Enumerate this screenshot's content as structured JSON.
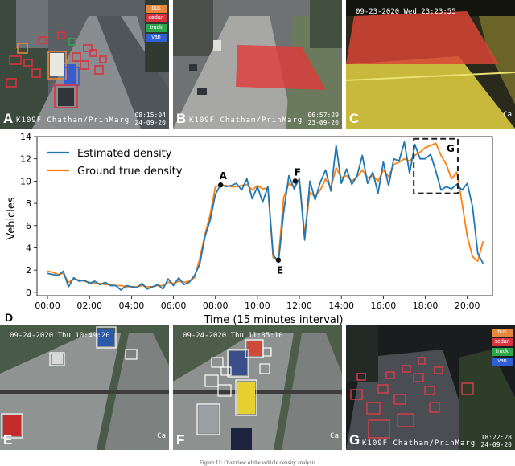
{
  "panels": {
    "A": {
      "label": "A",
      "location": "K109F Chatham/PrinMarg",
      "time_line1": "08:15:04",
      "time_line2": "24-09-20",
      "legend": [
        {
          "label": "bus",
          "color": "#e8863a"
        },
        {
          "label": "sedan",
          "color": "#d9323f"
        },
        {
          "label": "truck",
          "color": "#2aa84a"
        },
        {
          "label": "van",
          "color": "#2f5fd6"
        }
      ]
    },
    "B": {
      "label": "B",
      "location": "K109F Chatham/PrinMarg",
      "time_line1": "06:57:29",
      "time_line2": "23-09-20"
    },
    "C": {
      "label": "C",
      "timestamp": "09-23-2020 Wed 23:23:55",
      "corner": "Ca"
    },
    "D": {
      "label": "D"
    },
    "E": {
      "label": "E",
      "timestamp": "09-24-2020 Thu 10:49:20",
      "corner": "Ca"
    },
    "F": {
      "label": "F",
      "timestamp": "09-24-2020 Thu 11:35:10",
      "corner": "Ca"
    },
    "G": {
      "label": "G",
      "location": "K109F Chatham/PrinMarg",
      "time_line1": "18:22:28",
      "time_line2": "24-09-20",
      "legend": [
        {
          "label": "bus",
          "color": "#e8863a"
        },
        {
          "label": "sedan",
          "color": "#d9323f"
        },
        {
          "label": "truck",
          "color": "#2aa84a"
        },
        {
          "label": "van",
          "color": "#2f5fd6"
        }
      ]
    }
  },
  "caption": "Figure 11: Overview of the vehicle density analysis",
  "chart_data": {
    "type": "line",
    "xlabel": "Time (15 minutes interval)",
    "ylabel": "Vehicles",
    "xlim": [
      -0.5,
      21.2
    ],
    "ylim": [
      -0.3,
      14
    ],
    "x_ticks": [
      0,
      2,
      4,
      6,
      8,
      10,
      12,
      14,
      16,
      18,
      20
    ],
    "x_tick_labels": [
      "00:00",
      "02:00",
      "04:00",
      "06:00",
      "08:00",
      "10:00",
      "12:00",
      "14:00",
      "16:00",
      "18:00",
      "20:00"
    ],
    "y_ticks": [
      0,
      2,
      4,
      6,
      8,
      10,
      12,
      14
    ],
    "y_tick_labels": [
      "0",
      "2",
      "4",
      "6",
      "8",
      "10",
      "12",
      "14"
    ],
    "grid": false,
    "legend_position": "top-left",
    "x": [
      0,
      0.25,
      0.5,
      0.75,
      1,
      1.25,
      1.5,
      1.75,
      2,
      2.25,
      2.5,
      2.75,
      3,
      3.25,
      3.5,
      3.75,
      4,
      4.25,
      4.5,
      4.75,
      5,
      5.25,
      5.5,
      5.75,
      6,
      6.25,
      6.5,
      6.75,
      7,
      7.25,
      7.5,
      7.75,
      8,
      8.25,
      8.5,
      8.75,
      9,
      9.25,
      9.5,
      9.75,
      10,
      10.25,
      10.5,
      10.75,
      11,
      11.25,
      11.5,
      11.75,
      12,
      12.25,
      12.5,
      12.75,
      13,
      13.25,
      13.5,
      13.75,
      14,
      14.25,
      14.5,
      14.75,
      15,
      15.25,
      15.5,
      15.75,
      16,
      16.25,
      16.5,
      16.75,
      17,
      17.25,
      17.5,
      17.75,
      18,
      18.25,
      18.5,
      18.75,
      19,
      19.25,
      19.5,
      19.75,
      20,
      20.25,
      20.5,
      20.75
    ],
    "series": [
      {
        "name": "Estimated density",
        "color": "#1f77b4",
        "values": [
          1.7,
          1.6,
          1.5,
          1.9,
          0.5,
          1.3,
          1.0,
          1.1,
          0.8,
          1.0,
          0.7,
          0.9,
          0.6,
          0.6,
          0.2,
          0.6,
          0.5,
          0.4,
          0.8,
          0.3,
          0.5,
          0.7,
          0.3,
          1.2,
          0.6,
          1.3,
          0.7,
          0.9,
          1.5,
          2.5,
          5.0,
          6.5,
          8.8,
          9.7,
          9.5,
          9.6,
          9.8,
          9.2,
          10.2,
          8.4,
          9.5,
          8.1,
          9.5,
          3.4,
          2.7,
          7.2,
          10.5,
          9.3,
          10.2,
          4.7,
          10.0,
          8.3,
          9.9,
          11.0,
          9.1,
          13.2,
          9.8,
          11.1,
          9.7,
          10.5,
          12.3,
          9.8,
          10.8,
          8.9,
          11.7,
          9.6,
          12.0,
          11.8,
          13.5,
          10.7,
          13.3,
          12.0,
          12.0,
          12.4,
          10.9,
          9.2,
          9.5,
          9.3,
          9.7,
          9.2,
          9.8,
          7.7,
          3.5,
          2.6
        ]
      },
      {
        "name": "Ground true density",
        "color": "#ff7f0e",
        "values": [
          1.9,
          1.8,
          1.6,
          1.7,
          0.9,
          1.2,
          1.1,
          1.0,
          0.9,
          0.8,
          0.8,
          0.7,
          0.7,
          0.6,
          0.6,
          0.5,
          0.5,
          0.5,
          0.6,
          0.5,
          0.5,
          0.6,
          0.6,
          0.9,
          0.8,
          1.0,
          0.9,
          1.0,
          1.3,
          3.0,
          5.2,
          7.0,
          9.5,
          9.6,
          9.6,
          9.5,
          9.5,
          9.6,
          9.7,
          9.2,
          9.6,
          9.3,
          9.4,
          3.1,
          3.0,
          8.5,
          9.8,
          9.5,
          10.2,
          5.2,
          9.0,
          8.6,
          9.2,
          10.2,
          9.4,
          11.2,
          10.3,
          10.5,
          10.0,
          10.4,
          11.0,
          10.3,
          10.5,
          10.0,
          11.0,
          10.4,
          11.5,
          11.7,
          12.0,
          11.8,
          12.3,
          12.6,
          13.0,
          13.2,
          13.4,
          12.3,
          11.5,
          10.2,
          10.8,
          8.0,
          5.0,
          3.2,
          2.8,
          4.6
        ]
      }
    ],
    "annotations": [
      {
        "label": "A",
        "x": 8.25,
        "y": 9.65
      },
      {
        "label": "E",
        "x": 11.0,
        "y": 2.9
      },
      {
        "label": "F",
        "x": 11.8,
        "y": 10.0
      },
      {
        "label": "G",
        "x": 18.3,
        "y": 11.5
      }
    ]
  }
}
